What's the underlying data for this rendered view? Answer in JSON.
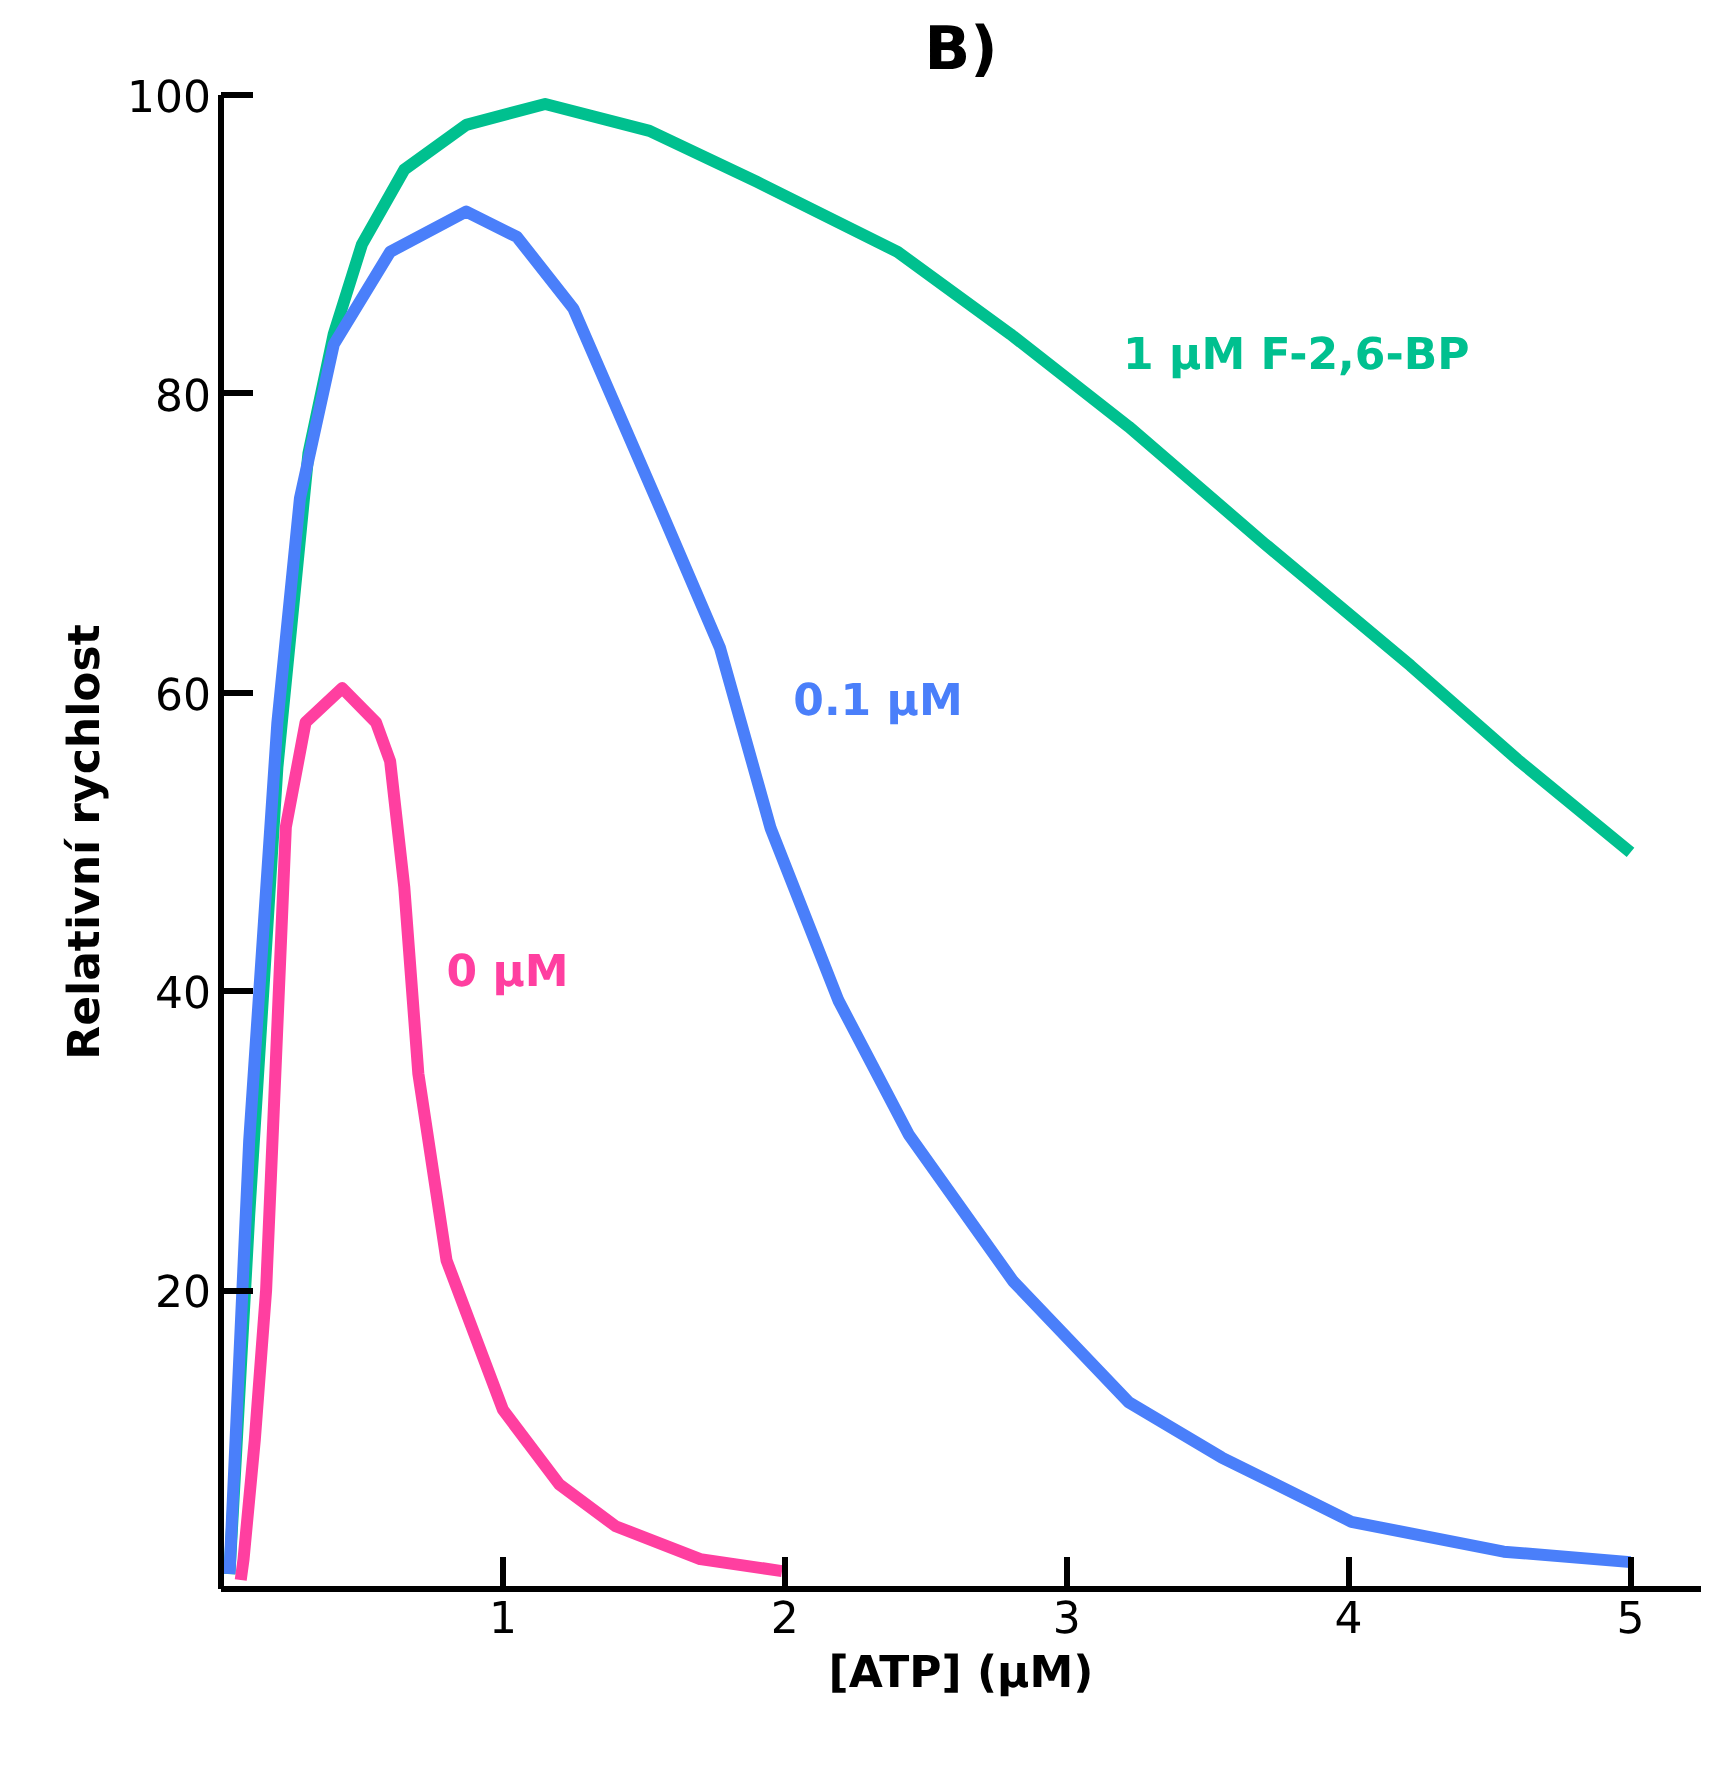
{
  "chart_data": {
    "type": "line",
    "title": "B)",
    "xlabel": "[ATP] (µM)",
    "ylabel": "Relativní rychlost",
    "xlim": [
      0,
      5.25
    ],
    "ylim": [
      0,
      100
    ],
    "xticks": [
      1,
      2,
      3,
      4,
      5
    ],
    "yticks": [
      20,
      40,
      60,
      80,
      100
    ],
    "grid": false,
    "series": [
      {
        "name": "1 µM F-2,6-BP",
        "color": "#00c08f",
        "x": [
          0.03,
          0.1,
          0.2,
          0.31,
          0.4,
          0.5,
          0.65,
          0.87,
          1.15,
          1.52,
          1.9,
          2.4,
          2.8,
          3.22,
          3.7,
          4.22,
          4.6,
          5.0
        ],
        "values": [
          1,
          25,
          55,
          76,
          84,
          90,
          95,
          98,
          99.4,
          97.6,
          94.2,
          89.5,
          84,
          77.8,
          70,
          61.8,
          55.5,
          49.3
        ]
      },
      {
        "name": "0.1 µM",
        "color": "#4a7ffa",
        "x": [
          0.03,
          0.1,
          0.2,
          0.28,
          0.4,
          0.6,
          0.87,
          1.05,
          1.25,
          1.57,
          1.77,
          1.95,
          2.19,
          2.44,
          2.81,
          3.22,
          3.55,
          4.01,
          4.55,
          5.0
        ],
        "values": [
          1,
          30,
          58,
          73,
          83.3,
          89.5,
          92.2,
          90.5,
          85.7,
          71.8,
          63,
          50.9,
          39.4,
          30.4,
          20.6,
          12.5,
          8.8,
          4.5,
          2.5,
          1.8
        ]
      },
      {
        "name": "0 µM",
        "color": "#ff3fa0",
        "x": [
          0.07,
          0.08,
          0.12,
          0.16,
          0.23,
          0.3,
          0.43,
          0.55,
          0.6,
          0.65,
          0.7,
          0.8,
          1.0,
          1.2,
          1.4,
          1.7,
          1.99
        ],
        "values": [
          0.6,
          2,
          10,
          20,
          51,
          58,
          60.3,
          58,
          55.4,
          47,
          34.5,
          22,
          12,
          7,
          4.2,
          2,
          1.2
        ]
      }
    ]
  }
}
